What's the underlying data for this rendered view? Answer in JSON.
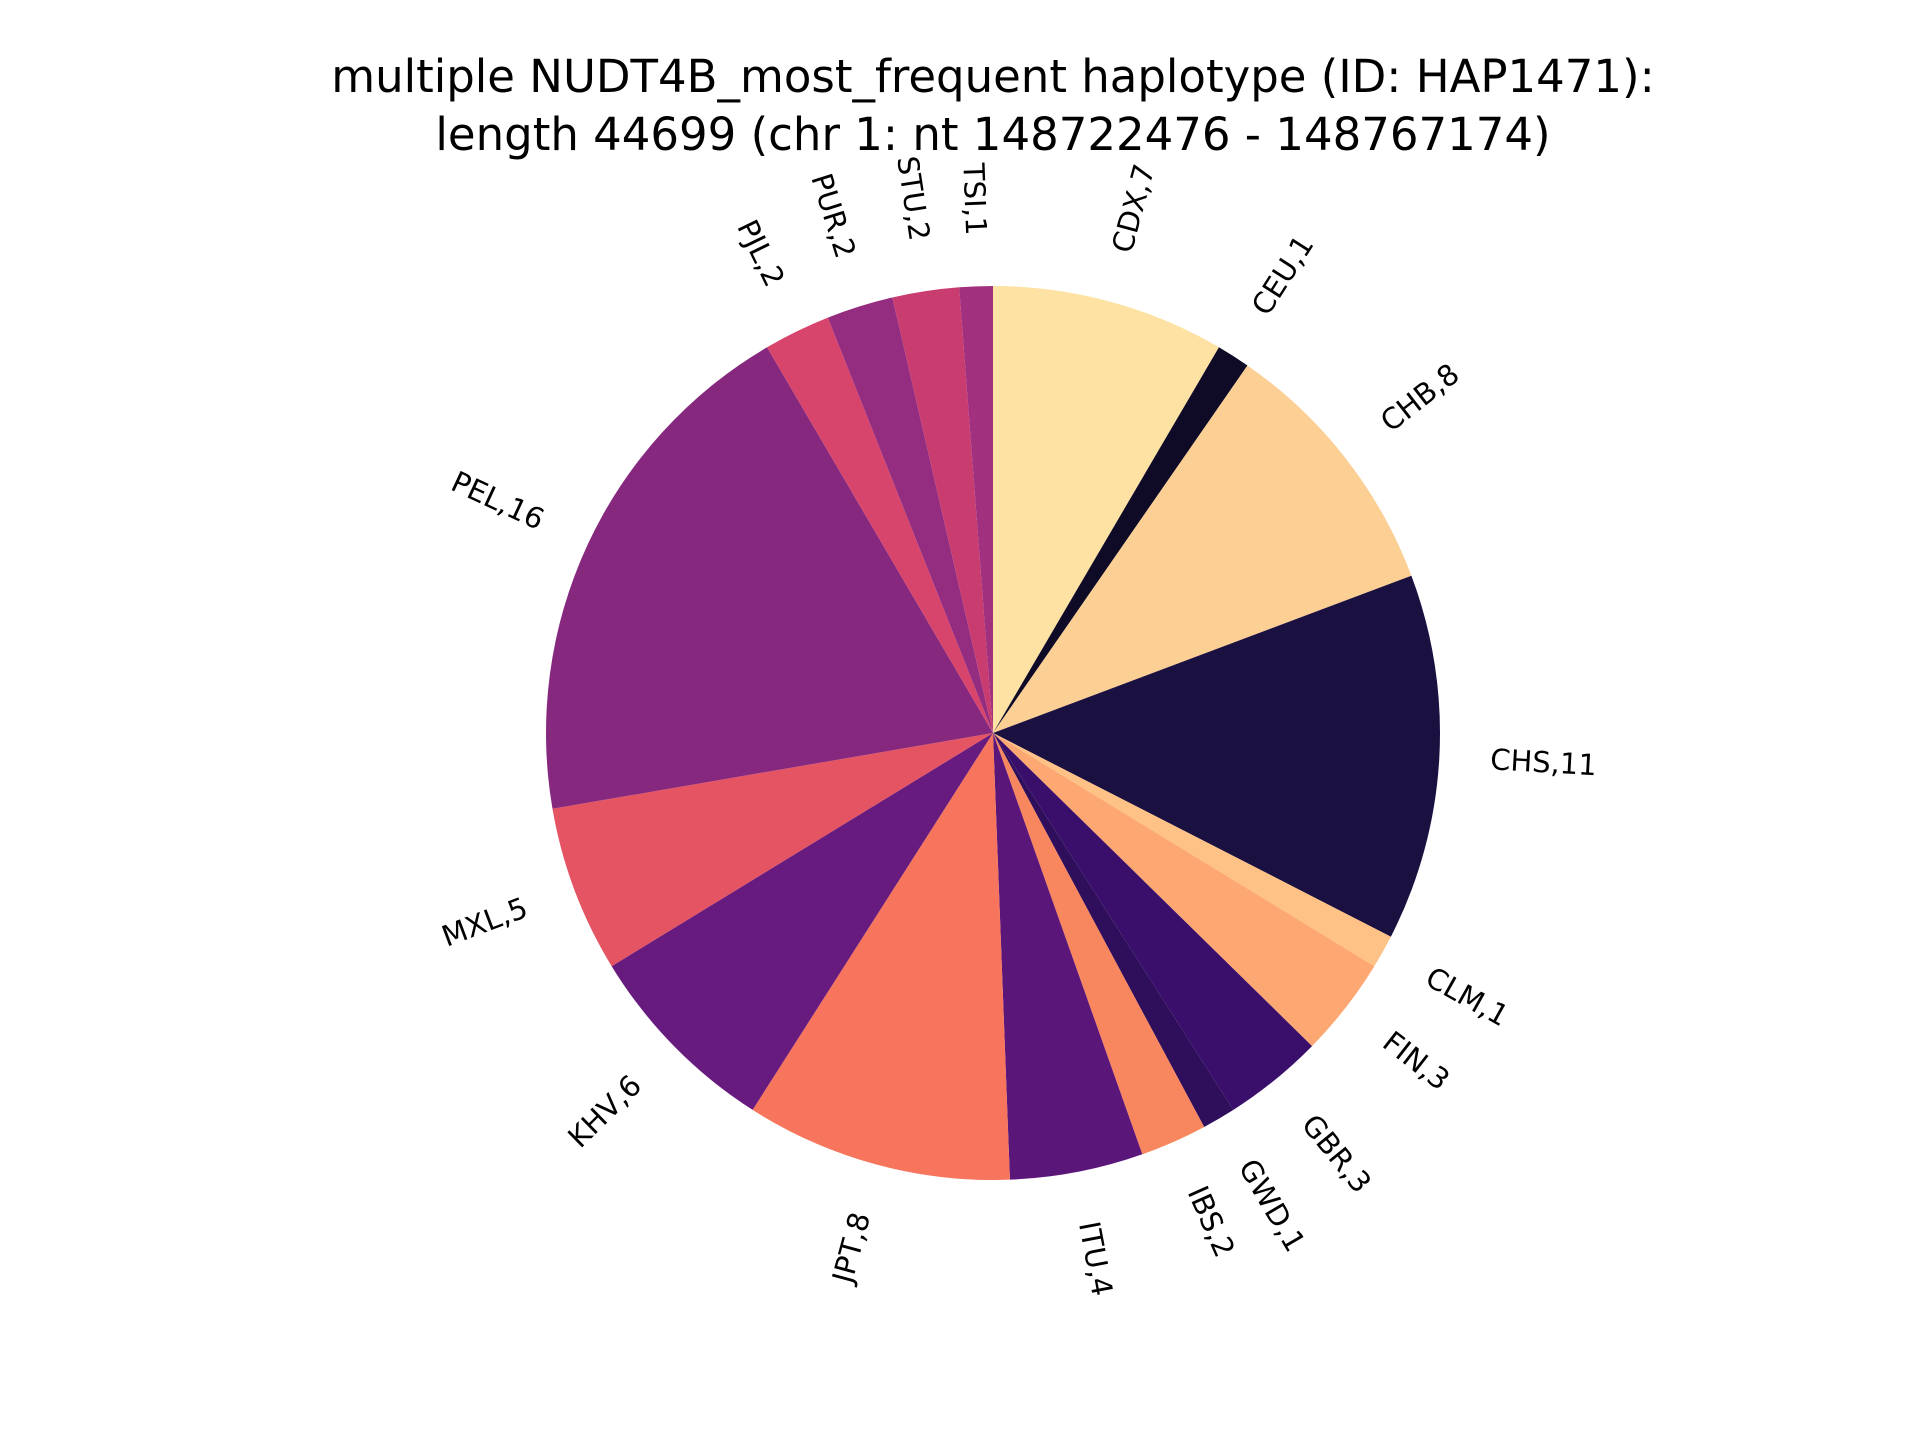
{
  "chart_data": {
    "type": "pie",
    "title_lines": [
      "multiple NUDT4B_most_frequent haplotype (ID: HAP1471):",
      "length 44699 (chr 1: nt 148722476 - 148767174)"
    ],
    "start_angle_deg": 90,
    "direction": "clockwise",
    "slices": [
      {
        "name": "CDX",
        "value": 7,
        "label": "CDX,7",
        "color": "#fde2a3"
      },
      {
        "name": "CEU",
        "value": 1,
        "label": "CEU,1",
        "color": "#0f0b26"
      },
      {
        "name": "CHB",
        "value": 8,
        "label": "CHB,8",
        "color": "#fccf94"
      },
      {
        "name": "CHS",
        "value": 11,
        "label": "CHS,11",
        "color": "#1b1141"
      },
      {
        "name": "CLM",
        "value": 1,
        "label": "CLM,1",
        "color": "#fec286"
      },
      {
        "name": "FIN",
        "value": 3,
        "label": "FIN,3",
        "color": "#fda872"
      },
      {
        "name": "GBR",
        "value": 3,
        "label": "GBR,3",
        "color": "#3a0f6b"
      },
      {
        "name": "GWD",
        "value": 1,
        "label": "GWD,1",
        "color": "#2f0f5c"
      },
      {
        "name": "IBS",
        "value": 2,
        "label": "IBS,2",
        "color": "#f8865e"
      },
      {
        "name": "ITU",
        "value": 4,
        "label": "ITU,4",
        "color": "#5b167a"
      },
      {
        "name": "JPT",
        "value": 8,
        "label": "JPT,8",
        "color": "#f6755c"
      },
      {
        "name": "KHV",
        "value": 6,
        "label": "KHV,6",
        "color": "#681b7f"
      },
      {
        "name": "MXL",
        "value": 5,
        "label": "MXL,5",
        "color": "#e45462"
      },
      {
        "name": "PEL",
        "value": 16,
        "label": "PEL,16",
        "color": "#87287f"
      },
      {
        "name": "PJL",
        "value": 2,
        "label": "PJL,2",
        "color": "#d8456c"
      },
      {
        "name": "PUR",
        "value": 2,
        "label": "PUR,2",
        "color": "#942c80"
      },
      {
        "name": "STU",
        "value": 2,
        "label": "STU,2",
        "color": "#c83c70"
      },
      {
        "name": "TSI",
        "value": 1,
        "label": "TSI,1",
        "color": "#a1307e"
      }
    ]
  }
}
